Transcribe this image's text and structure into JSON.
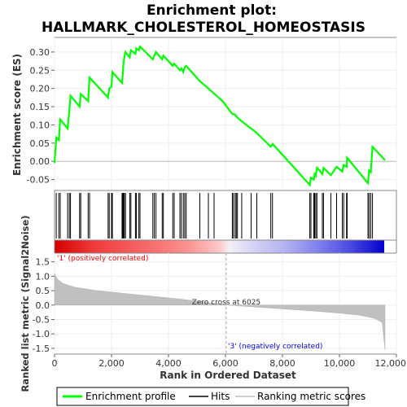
{
  "chart_data": {
    "type": "line",
    "title_line1": "Enrichment plot:",
    "title_line2": "HALLMARK_CHOLESTEROL_HOMEOSTASIS",
    "xlabel": "Rank in Ordered Dataset",
    "xlim": [
      0,
      12000
    ],
    "xticks": [
      0,
      2000,
      4000,
      6000,
      8000,
      10000,
      12000
    ],
    "xtick_labels": [
      "0",
      "2,000",
      "4,000",
      "6,000",
      "8,000",
      "10,000",
      "12,000"
    ],
    "es_panel": {
      "ylabel": "Enrichment score (ES)",
      "ylim": [
        -0.08,
        0.34
      ],
      "yticks": [
        -0.05,
        0.0,
        0.05,
        0.1,
        0.15,
        0.2,
        0.25,
        0.3
      ],
      "ytick_labels": [
        "-0.05",
        "0.00",
        "0.05",
        "0.10",
        "0.15",
        "0.20",
        "0.25",
        "0.30"
      ],
      "series_name": "Enrichment profile",
      "color": "#00ff00",
      "points": [
        [
          0,
          -0.005
        ],
        [
          60,
          0.065
        ],
        [
          150,
          0.058
        ],
        [
          200,
          0.115
        ],
        [
          460,
          0.09
        ],
        [
          520,
          0.14
        ],
        [
          560,
          0.18
        ],
        [
          880,
          0.15
        ],
        [
          920,
          0.185
        ],
        [
          1180,
          0.165
        ],
        [
          1230,
          0.23
        ],
        [
          1880,
          0.175
        ],
        [
          1920,
          0.2
        ],
        [
          2000,
          0.205
        ],
        [
          2030,
          0.245
        ],
        [
          2370,
          0.215
        ],
        [
          2400,
          0.245
        ],
        [
          2420,
          0.27
        ],
        [
          2450,
          0.285
        ],
        [
          2490,
          0.3
        ],
        [
          2640,
          0.285
        ],
        [
          2680,
          0.305
        ],
        [
          2840,
          0.295
        ],
        [
          2870,
          0.31
        ],
        [
          2960,
          0.305
        ],
        [
          3000,
          0.315
        ],
        [
          3450,
          0.28
        ],
        [
          3500,
          0.29
        ],
        [
          3560,
          0.3
        ],
        [
          3780,
          0.28
        ],
        [
          3820,
          0.29
        ],
        [
          4150,
          0.262
        ],
        [
          4200,
          0.268
        ],
        [
          4400,
          0.25
        ],
        [
          4450,
          0.255
        ],
        [
          4520,
          0.245
        ],
        [
          4570,
          0.258
        ],
        [
          4620,
          0.262
        ],
        [
          5100,
          0.22
        ],
        [
          5400,
          0.2
        ],
        [
          5900,
          0.165
        ],
        [
          6240,
          0.13
        ],
        [
          6340,
          0.128
        ],
        [
          6420,
          0.12
        ],
        [
          6570,
          0.11
        ],
        [
          6900,
          0.09
        ],
        [
          7100,
          0.078
        ],
        [
          7590,
          0.04
        ],
        [
          7650,
          0.048
        ],
        [
          8960,
          -0.065
        ],
        [
          9000,
          -0.045
        ],
        [
          9100,
          -0.05
        ],
        [
          9130,
          -0.035
        ],
        [
          9170,
          -0.04
        ],
        [
          9210,
          -0.018
        ],
        [
          9300,
          -0.025
        ],
        [
          9400,
          -0.035
        ],
        [
          9440,
          -0.018
        ],
        [
          9700,
          -0.038
        ],
        [
          9900,
          -0.015
        ],
        [
          10100,
          -0.028
        ],
        [
          10150,
          -0.01
        ],
        [
          10250,
          -0.015
        ],
        [
          10270,
          0.01
        ],
        [
          11000,
          -0.06
        ],
        [
          11040,
          -0.025
        ],
        [
          11100,
          -0.03
        ],
        [
          11160,
          0.04
        ],
        [
          11600,
          0.003
        ]
      ]
    },
    "hits": {
      "series_name": "Hits",
      "positions": [
        60,
        150,
        200,
        460,
        520,
        560,
        880,
        920,
        1180,
        1230,
        1880,
        1920,
        2000,
        2030,
        2370,
        2400,
        2420,
        2450,
        2490,
        2640,
        2680,
        2840,
        2870,
        2960,
        3000,
        3450,
        3500,
        3560,
        3780,
        3820,
        4150,
        4200,
        4400,
        4450,
        4520,
        4570,
        4620,
        5100,
        5400,
        5600,
        6240,
        6280,
        6340,
        6380,
        6420,
        6570,
        6900,
        7100,
        7590,
        7650,
        8960,
        9000,
        9100,
        9130,
        9170,
        9210,
        9400,
        9440,
        9700,
        9900,
        10100,
        10150,
        10250,
        10270,
        11000,
        11040,
        11100,
        11160
      ]
    },
    "heatbar": {
      "stops": [
        [
          0,
          "#d40000"
        ],
        [
          0.12,
          "#f03a3a"
        ],
        [
          0.28,
          "#f66a6a"
        ],
        [
          0.4,
          "#fa9090"
        ],
        [
          0.5,
          "#ffc8c8"
        ],
        [
          0.53,
          "#f4f0f4"
        ],
        [
          0.6,
          "#d6d4f6"
        ],
        [
          0.7,
          "#b2b2f0"
        ],
        [
          0.8,
          "#8080ee"
        ],
        [
          0.9,
          "#4848e0"
        ],
        [
          1,
          "#0000cc"
        ]
      ]
    },
    "metric_panel": {
      "ylabel": "Ranked list metric (Signal2Noise)",
      "ylim": [
        -1.7,
        1.8
      ],
      "yticks": [
        -1.5,
        -1.0,
        -0.5,
        0.0,
        0.5,
        1.0,
        1.5
      ],
      "ytick_labels": [
        "-1.5",
        "-1.0",
        "-0.5",
        "0.0",
        "0.5",
        "1.0",
        "1.5"
      ],
      "series_name": "Ranking metric scores",
      "color": "#c0c0c0",
      "points": [
        [
          0,
          1.1
        ],
        [
          100,
          0.9
        ],
        [
          300,
          0.75
        ],
        [
          700,
          0.62
        ],
        [
          1500,
          0.5
        ],
        [
          3000,
          0.35
        ],
        [
          4500,
          0.2
        ],
        [
          6025,
          0.0
        ],
        [
          7500,
          -0.1
        ],
        [
          9000,
          -0.2
        ],
        [
          10000,
          -0.28
        ],
        [
          10700,
          -0.35
        ],
        [
          11200,
          -0.45
        ],
        [
          11500,
          -0.6
        ],
        [
          11600,
          -1.55
        ]
      ],
      "zero_cross": 6025,
      "zero_cross_label": "Zero cross at 6025",
      "pos_label": "'1' (positively correlated)",
      "neg_label": "'3' (negatively correlated)",
      "pos_color": "#ff0000",
      "neg_color": "#0000ff"
    },
    "legend": {
      "items": [
        {
          "label": "Enrichment profile",
          "color": "#00ff00"
        },
        {
          "label": "Hits",
          "color": "#000000"
        },
        {
          "label": "Ranking metric scores",
          "color": "#c0c0c0"
        }
      ]
    }
  }
}
